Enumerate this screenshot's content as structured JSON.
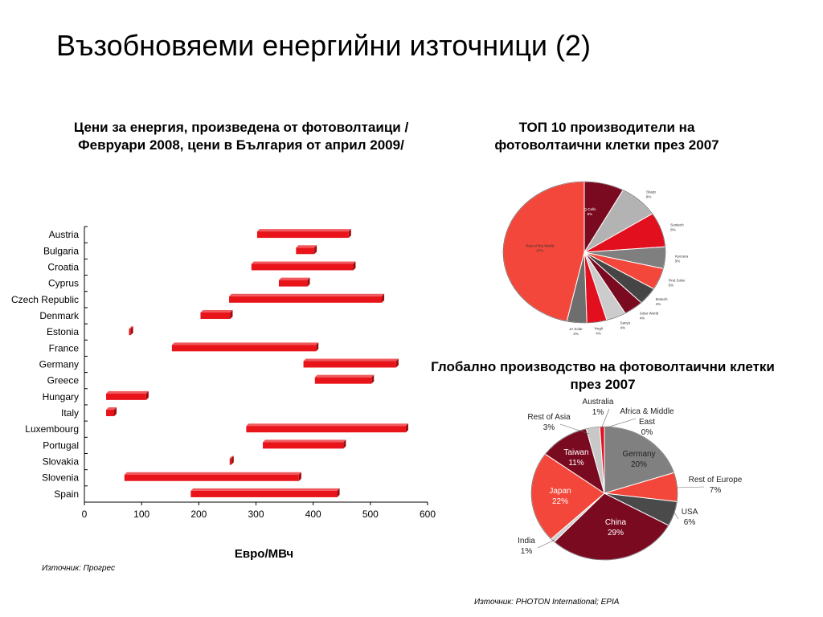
{
  "page": {
    "title": "Възобновяеми енергийни източници (2)",
    "left_subtitle": "Цени за енергия, произведена от фотоволтаици /Февруари 2008, цени в България от април 2009/",
    "top_right_subtitle": "ТОП 10 производители на фотоволтаични клетки през 2007",
    "bottom_right_subtitle": "Глобално производство на фотоволтаични клетки през 2007",
    "source_left": "Източник: Прогрес",
    "source_right": "Източник: PHOTON International; EPIA"
  },
  "chart_data": [
    {
      "type": "bar",
      "orientation": "horizontal-range",
      "title": "",
      "xlabel": "Евро/МВч",
      "ylabel": "",
      "xlim": [
        0,
        600
      ],
      "xticks": [
        0,
        100,
        200,
        300,
        400,
        500,
        600
      ],
      "categories": [
        "Austria",
        "Bulgaria",
        "Croatia",
        "Cyprus",
        "Czech Republic",
        "Denmark",
        "Estonia",
        "France",
        "Germany",
        "Greece",
        "Hungary",
        "Italy",
        "Luxembourg",
        "Portugal",
        "Slovakia",
        "Slovenia",
        "Spain"
      ],
      "ranges": [
        [
          302,
          462
        ],
        [
          370,
          402
        ],
        [
          292,
          470
        ],
        [
          340,
          390
        ],
        [
          253,
          520
        ],
        [
          203,
          255
        ],
        [
          78,
          81
        ],
        [
          153,
          405
        ],
        [
          383,
          545
        ],
        [
          403,
          502
        ],
        [
          38,
          108
        ],
        [
          38,
          52
        ],
        [
          283,
          562
        ],
        [
          312,
          453
        ],
        [
          254,
          256
        ],
        [
          70,
          375
        ],
        [
          186,
          442
        ]
      ],
      "colors": {
        "bar": "#e8141a",
        "bar_dark": "#9c0b0e"
      },
      "grid": false
    },
    {
      "type": "pie",
      "title": "",
      "slices": [
        {
          "label": "Q-Cells",
          "value": 8,
          "pct_label": "8%",
          "color": "#7a0a20"
        },
        {
          "label": "Sharp",
          "value": 8,
          "pct_label": "8%",
          "color": "#b3b3b3"
        },
        {
          "label": "Suntech",
          "value": 8,
          "pct_label": "8%",
          "color": "#e20f1e"
        },
        {
          "label": "Kyocera",
          "value": 5,
          "pct_label": "5%",
          "color": "#7f7f7f"
        },
        {
          "label": "First Solar",
          "value": 5,
          "pct_label": "5%",
          "color": "#f2473a"
        },
        {
          "label": "Motech",
          "value": 4,
          "pct_label": "4%",
          "color": "#454545"
        },
        {
          "label": "Solar World",
          "value": 4,
          "pct_label": "4%",
          "color": "#7a0a20"
        },
        {
          "label": "Sanyo",
          "value": 4,
          "pct_label": "4%",
          "color": "#cccccc"
        },
        {
          "label": "Yingli",
          "value": 4,
          "pct_label": "4%",
          "color": "#e20f1e"
        },
        {
          "label": "JA Solar",
          "value": 4,
          "pct_label": "4%",
          "color": "#6e6e6e"
        },
        {
          "label": "Rest of the World",
          "value": 47,
          "pct_label": "47%",
          "color": "#f2473a"
        }
      ]
    },
    {
      "type": "pie",
      "title": "",
      "slices": [
        {
          "label": "Germany",
          "value": 20,
          "pct_label": "20%",
          "color": "#808080"
        },
        {
          "label": "Rest of Europe",
          "value": 7,
          "pct_label": "7%",
          "color": "#f2473a"
        },
        {
          "label": "USA",
          "value": 6,
          "pct_label": "6%",
          "color": "#4a4a4a"
        },
        {
          "label": "China",
          "value": 29,
          "pct_label": "29%",
          "color": "#7a0a20"
        },
        {
          "label": "India",
          "value": 1,
          "pct_label": "1%",
          "color": "#d0d0d0"
        },
        {
          "label": "Japan",
          "value": 22,
          "pct_label": "22%",
          "color": "#f2473a"
        },
        {
          "label": "Taiwan",
          "value": 11,
          "pct_label": "11%",
          "color": "#7a0a20"
        },
        {
          "label": "Rest of Asia",
          "value": 3,
          "pct_label": "3%",
          "color": "#c8c8c8"
        },
        {
          "label": "Australia",
          "value": 1,
          "pct_label": "1%",
          "color": "#e20f1e"
        },
        {
          "label": "Africa & Middle East",
          "value": 0,
          "pct_label": "0%",
          "color": "#808080"
        }
      ]
    }
  ]
}
